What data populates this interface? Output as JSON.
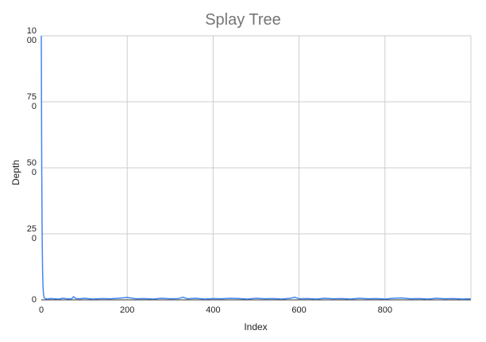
{
  "chart_data": {
    "type": "line",
    "title": "Splay Tree",
    "xlabel": "Index",
    "ylabel": "Depth",
    "xlim": [
      0,
      1000
    ],
    "ylim": [
      0,
      1000
    ],
    "grid": true,
    "x_ticks": [
      "0",
      "200",
      "400",
      "600",
      "800"
    ],
    "y_ticks": [
      "0",
      "25\n0",
      "50\n0",
      "75\n0",
      "10\n00"
    ],
    "x_tick_values": [
      0,
      200,
      400,
      600,
      800
    ],
    "y_tick_values": [
      0,
      250,
      500,
      750,
      1000
    ],
    "series": [
      {
        "color": "#4285f4",
        "x": [
          0,
          1,
          2,
          3,
          4,
          5,
          6,
          8,
          10,
          15,
          20,
          30,
          40,
          50,
          60,
          70,
          75,
          80,
          90,
          100,
          120,
          140,
          160,
          180,
          200,
          220,
          240,
          260,
          280,
          300,
          320,
          330,
          340,
          360,
          380,
          400,
          420,
          440,
          460,
          480,
          500,
          520,
          540,
          560,
          580,
          590,
          600,
          620,
          640,
          660,
          680,
          700,
          720,
          740,
          760,
          780,
          800,
          820,
          840,
          860,
          880,
          900,
          920,
          940,
          960,
          980,
          999
        ],
        "y": [
          1000,
          500,
          240,
          110,
          50,
          25,
          12,
          6,
          4,
          3,
          5,
          4,
          3,
          6,
          4,
          3,
          12,
          5,
          4,
          6,
          3,
          5,
          4,
          6,
          9,
          4,
          5,
          3,
          6,
          4,
          5,
          10,
          4,
          6,
          3,
          5,
          4,
          6,
          5,
          3,
          6,
          4,
          5,
          3,
          6,
          10,
          4,
          5,
          3,
          6,
          4,
          5,
          3,
          6,
          4,
          5,
          3,
          6,
          7,
          4,
          5,
          3,
          6,
          4,
          5,
          3,
          4
        ]
      }
    ]
  }
}
